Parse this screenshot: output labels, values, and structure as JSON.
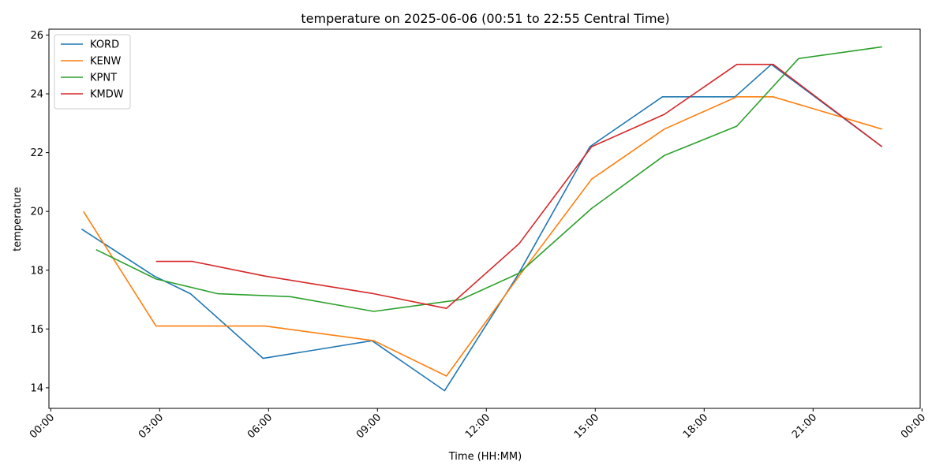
{
  "chart_data": {
    "type": "line",
    "title": "temperature on 2025-06-06 (00:51 to 22:55 Central Time)",
    "xlabel": "Time (HH:MM)",
    "ylabel": "temperature",
    "x_unit": "hours since midnight",
    "xlim": [
      -0.05,
      23.95
    ],
    "ylim": [
      13.3,
      26.2
    ],
    "x_ticks": [
      0,
      3,
      6,
      9,
      12,
      15,
      18,
      21,
      24
    ],
    "x_tick_labels": [
      "00:00",
      "03:00",
      "06:00",
      "09:00",
      "12:00",
      "15:00",
      "18:00",
      "21:00",
      "00:00"
    ],
    "y_ticks": [
      14,
      16,
      18,
      20,
      22,
      24,
      26
    ],
    "y_tick_labels": [
      "14",
      "16",
      "18",
      "20",
      "22",
      "24",
      "26"
    ],
    "grid": false,
    "legend_position": "top-left",
    "series": [
      {
        "name": "KORD",
        "color": "#1f77b4",
        "x": [
          0.85,
          2.85,
          3.85,
          5.85,
          8.85,
          10.85,
          12.85,
          14.85,
          16.85,
          18.85,
          19.85,
          22.9
        ],
        "y": [
          19.4,
          17.8,
          17.2,
          15.0,
          15.6,
          13.9,
          17.8,
          22.2,
          23.9,
          23.9,
          25.0,
          22.2
        ]
      },
      {
        "name": "KENW",
        "color": "#ff7f0e",
        "x": [
          0.9,
          2.9,
          5.9,
          8.9,
          10.9,
          12.9,
          14.9,
          16.9,
          18.9,
          19.9,
          22.9
        ],
        "y": [
          20.0,
          16.1,
          16.1,
          15.6,
          14.4,
          17.8,
          21.1,
          22.8,
          23.9,
          23.9,
          22.8
        ]
      },
      {
        "name": "KPNT",
        "color": "#2ca02c",
        "x": [
          1.25,
          2.9,
          4.6,
          6.6,
          8.9,
          11.3,
          12.9,
          14.9,
          16.9,
          18.9,
          20.6,
          22.9
        ],
        "y": [
          18.7,
          17.7,
          17.2,
          17.1,
          16.6,
          17.0,
          17.9,
          20.1,
          21.9,
          22.9,
          25.2,
          25.6
        ]
      },
      {
        "name": "KMDW",
        "color": "#d62728",
        "x": [
          2.9,
          3.9,
          5.9,
          8.9,
          10.9,
          12.9,
          14.9,
          16.9,
          18.9,
          19.9,
          22.9
        ],
        "y": [
          18.3,
          18.3,
          17.8,
          17.2,
          16.7,
          18.9,
          22.2,
          23.3,
          25.0,
          25.0,
          22.2
        ]
      }
    ]
  }
}
